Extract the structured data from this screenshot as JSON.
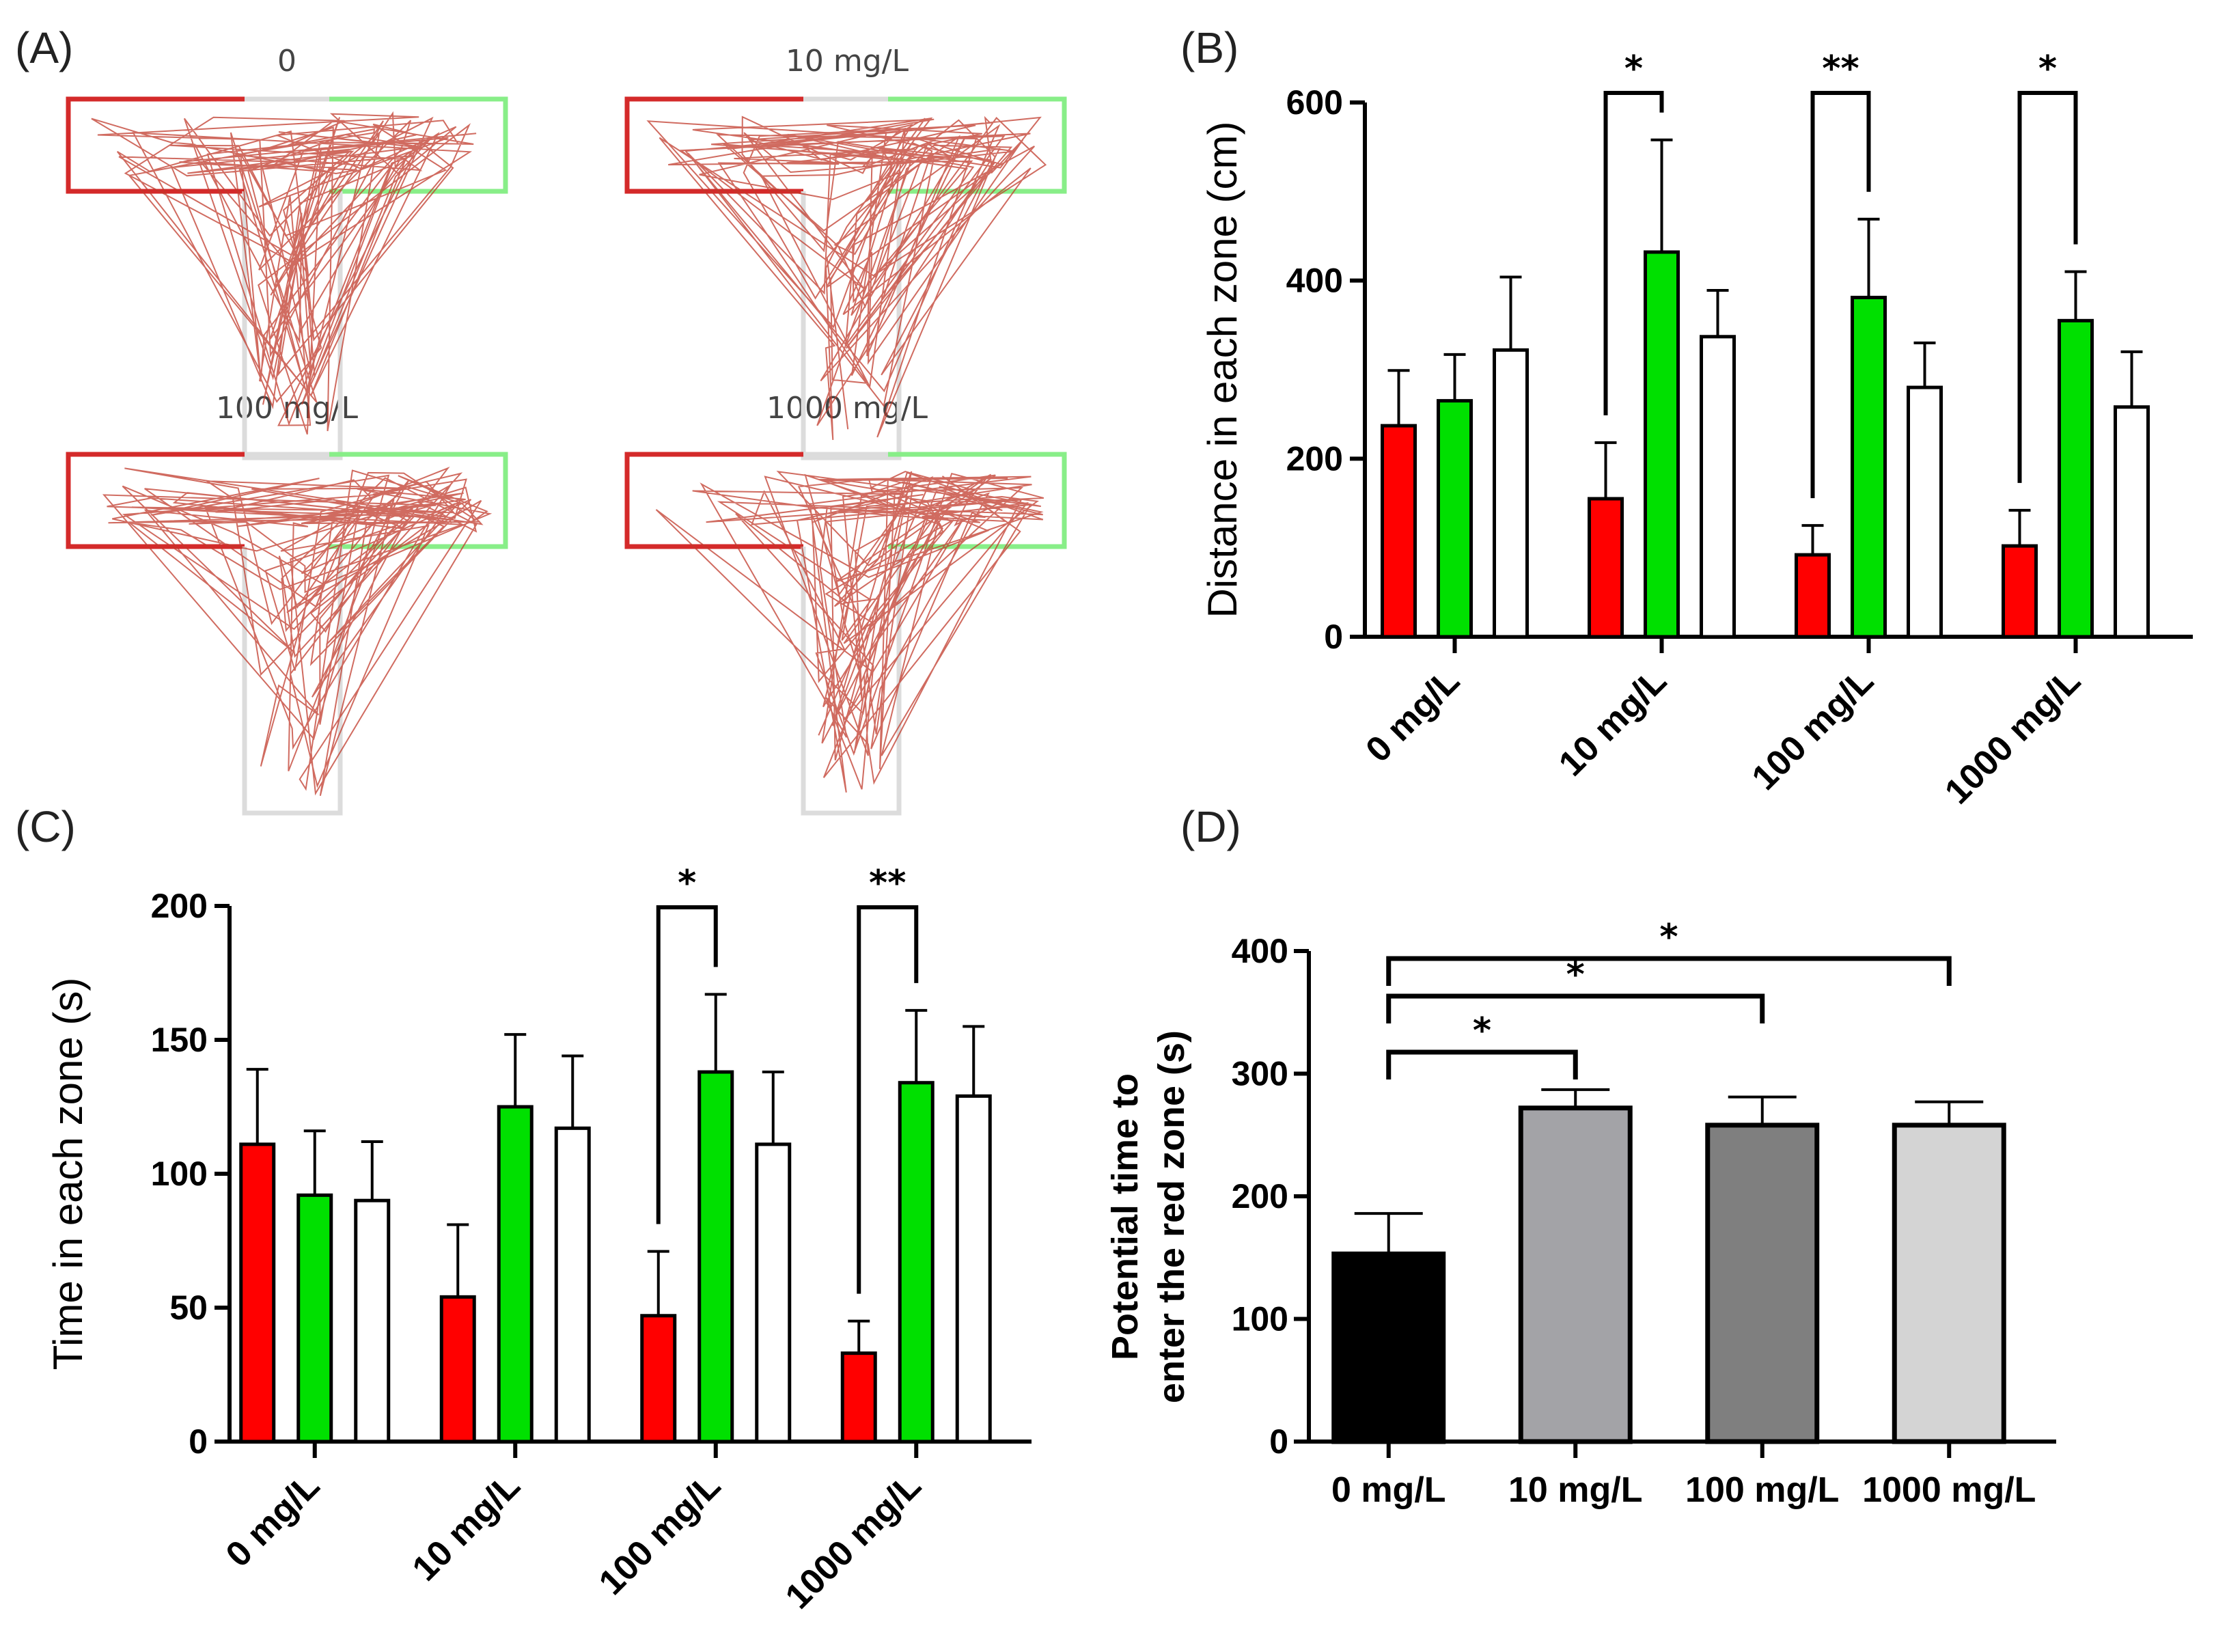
{
  "figure": {
    "panels": {
      "a": "(A)",
      "b": "(B)",
      "c": "(C)",
      "d": "(D)"
    }
  },
  "colors": {
    "red": "#ff0000",
    "green": "#00e000",
    "white": "#ffffff",
    "maze_red": "#d42a2a",
    "maze_green": "#88ee88",
    "maze_gray": "#dcdcdc",
    "trace": "#c0392b"
  },
  "maze_titles": [
    "0",
    "10 mg/L",
    "100 mg/L",
    "1000 mg/L"
  ],
  "chart_data": [
    {
      "id": "B",
      "type": "bar",
      "ylabel": "Distance in each zone (cm)",
      "ylim": [
        0,
        600
      ],
      "yticks": [
        0,
        200,
        400,
        600
      ],
      "categories": [
        "0 mg/L",
        "10 mg/L",
        "100 mg/L",
        "1000 mg/L"
      ],
      "series": [
        {
          "name": "red zone",
          "color": "red",
          "values": [
            237,
            155,
            92,
            102
          ],
          "errors": [
            62,
            63,
            33,
            40
          ]
        },
        {
          "name": "green zone",
          "color": "green",
          "values": [
            265,
            432,
            381,
            355
          ],
          "errors": [
            52,
            126,
            88,
            55
          ]
        },
        {
          "name": "neutral zone",
          "color": "white",
          "values": [
            322,
            337,
            280,
            258
          ],
          "errors": [
            82,
            52,
            50,
            62
          ]
        }
      ],
      "significance": [
        {
          "group": 1,
          "label": "*"
        },
        {
          "group": 2,
          "label": "**"
        },
        {
          "group": 3,
          "label": "*"
        }
      ]
    },
    {
      "id": "C",
      "type": "bar",
      "ylabel": "Time in each zone (s)",
      "ylim": [
        0,
        200
      ],
      "yticks": [
        0,
        50,
        100,
        150,
        200
      ],
      "categories": [
        "0 mg/L",
        "10 mg/L",
        "100 mg/L",
        "1000 mg/L"
      ],
      "series": [
        {
          "name": "red zone",
          "color": "red",
          "values": [
            111,
            54,
            47,
            33
          ],
          "errors": [
            28,
            27,
            24,
            12
          ]
        },
        {
          "name": "green zone",
          "color": "green",
          "values": [
            92,
            125,
            138,
            134
          ],
          "errors": [
            24,
            27,
            29,
            27
          ]
        },
        {
          "name": "neutral zone",
          "color": "white",
          "values": [
            90,
            117,
            111,
            129
          ],
          "errors": [
            22,
            27,
            27,
            26
          ]
        }
      ],
      "significance": [
        {
          "group": 2,
          "label": "*"
        },
        {
          "group": 3,
          "label": "**"
        }
      ]
    },
    {
      "id": "D",
      "type": "bar",
      "ylabel_lines": [
        "Potential time to",
        "enter the red zone (s)"
      ],
      "ylim": [
        0,
        400
      ],
      "yticks": [
        0,
        100,
        200,
        300,
        400
      ],
      "categories": [
        "0 mg/L",
        "10 mg/L",
        "100 mg/L",
        "1000 mg/L"
      ],
      "values": [
        153,
        272,
        258,
        258
      ],
      "errors": [
        33,
        15,
        23,
        19
      ],
      "colors": [
        "#000000",
        "#a3a3a7",
        "#7f7f7f",
        "#d4d4d4"
      ],
      "significance": [
        {
          "from": 0,
          "to": 1,
          "label": "*"
        },
        {
          "from": 0,
          "to": 2,
          "label": "*"
        },
        {
          "from": 0,
          "to": 3,
          "label": "*"
        }
      ]
    }
  ]
}
